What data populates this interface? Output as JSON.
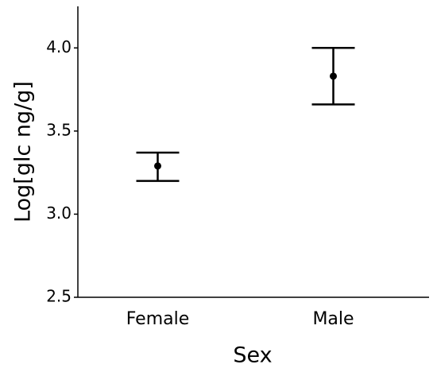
{
  "chart_data": {
    "type": "errorbar",
    "x_label": "Sex",
    "y_label": "Log[glc ng/g]",
    "categories": [
      "Female",
      "Male"
    ],
    "series": [
      {
        "color": "#000000",
        "values": [
          3.29,
          3.83
        ],
        "lower": [
          3.2,
          3.66
        ],
        "upper": [
          3.37,
          4.0
        ]
      }
    ],
    "ylim": [
      2.5,
      4.25
    ],
    "yticks": [
      2.5,
      {
        "value": 3,
        "label": "3.0"
      },
      3.5,
      {
        "value": 4,
        "label": "4.0"
      }
    ]
  }
}
